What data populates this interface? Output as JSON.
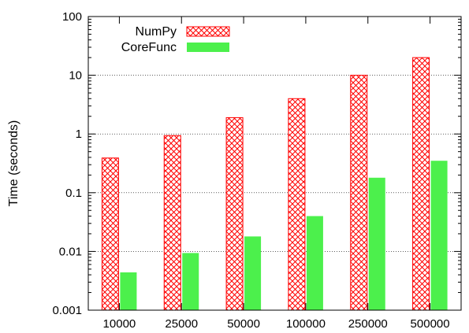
{
  "chart_data": {
    "type": "bar",
    "categories": [
      "10000",
      "25000",
      "50000",
      "100000",
      "250000",
      "500000"
    ],
    "series": [
      {
        "name": "NumPy",
        "values": [
          0.39,
          0.94,
          1.9,
          4.0,
          10.0,
          20.0
        ],
        "color": "#ff0000",
        "fill": "crosshatch"
      },
      {
        "name": "CoreFunc",
        "values": [
          0.0044,
          0.0094,
          0.018,
          0.04,
          0.18,
          0.35
        ],
        "color": "#4cf04c",
        "fill": "solid"
      }
    ],
    "title": "",
    "xlabel": "",
    "ylabel": "Time (seconds)",
    "yscale": "log",
    "ylim": [
      0.001,
      100
    ],
    "yticks": [
      0.001,
      0.01,
      0.1,
      1,
      10,
      100
    ],
    "ytick_labels": [
      "0.001",
      "0.01",
      "0.1",
      "1",
      "10",
      "100"
    ],
    "grid": true,
    "legend_position": "top-left"
  }
}
